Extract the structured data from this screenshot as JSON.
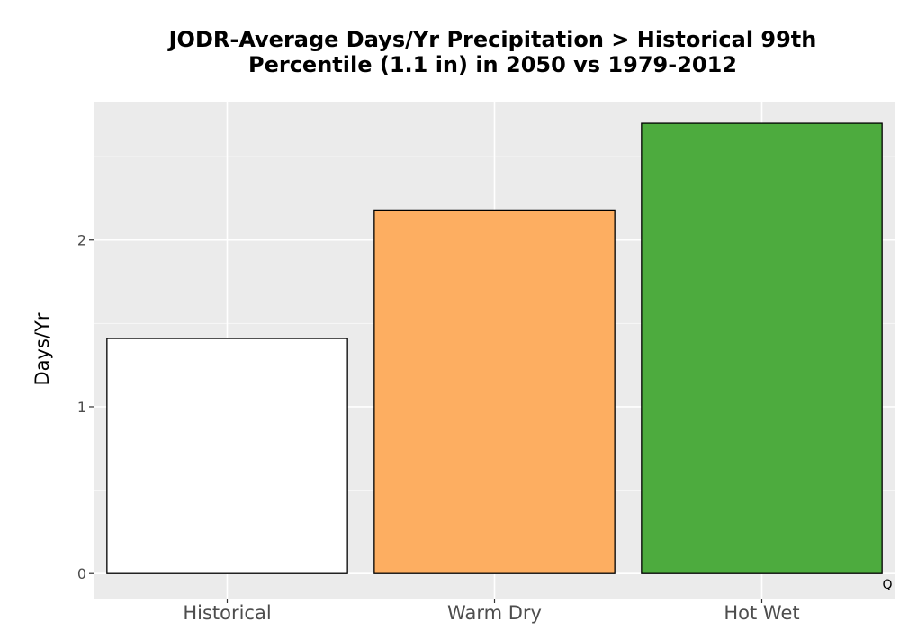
{
  "chart_data": {
    "type": "bar",
    "title_lines": [
      "JODR-Average Days/Yr Precipitation > Historical 99th",
      "Percentile (1.1 in) in 2050 vs 1979-2012"
    ],
    "xlabel": "",
    "ylabel": "Days/Yr",
    "categories": [
      "Historical",
      "Warm Dry",
      "Hot Wet"
    ],
    "values": [
      1.41,
      2.18,
      2.7
    ],
    "colors": [
      "#ffffff",
      "#fdae61",
      "#4dab3e"
    ],
    "y_ticks": [
      0,
      1,
      2
    ],
    "ylim": [
      -0.15,
      2.83
    ],
    "grid": true,
    "legend": "none",
    "corner_note": "Q",
    "panel_background": "#ebebeb",
    "bar_outline": "#000000"
  }
}
